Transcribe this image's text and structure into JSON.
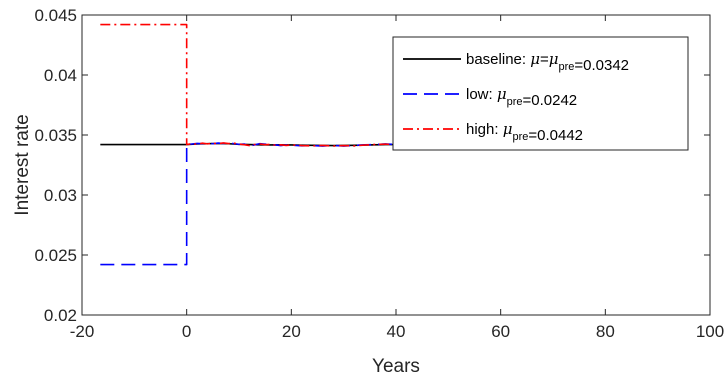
{
  "chart_data": {
    "type": "line",
    "title": "",
    "xlabel": "Years",
    "ylabel": "Interest rate",
    "xlim": [
      -20,
      100
    ],
    "ylim": [
      0.02,
      0.045
    ],
    "xticks": [
      -20,
      0,
      20,
      40,
      60,
      80,
      100
    ],
    "yticks": [
      0.02,
      0.025,
      0.03,
      0.035,
      0.04,
      0.045
    ],
    "ytick_labels": [
      "0.02",
      "0.025",
      "0.03",
      "0.035",
      "0.04",
      "0.045"
    ],
    "grid": false,
    "legend_position": "top-right",
    "series": [
      {
        "name": "baseline",
        "legend_parts": [
          "baseline: ",
          "μ",
          "=",
          "μ",
          "pre",
          "=0.0342"
        ],
        "color": "#000000",
        "style": "solid",
        "x": [
          -16.5,
          0,
          2,
          4,
          6,
          8,
          10,
          12,
          14,
          16,
          18,
          20,
          22,
          24,
          26,
          28,
          30,
          32,
          34,
          36,
          38,
          40,
          42,
          44,
          46,
          48,
          50,
          52,
          54,
          56
        ],
        "y": [
          0.0342,
          0.0342,
          0.03425,
          0.03428,
          0.0343,
          0.03427,
          0.03422,
          0.0342,
          0.03418,
          0.03417,
          0.03418,
          0.03417,
          0.03415,
          0.03414,
          0.03413,
          0.03412,
          0.03413,
          0.03414,
          0.03416,
          0.03418,
          0.0342,
          0.0342,
          0.0342,
          0.0342,
          0.0342,
          0.0342,
          0.0342,
          0.0342,
          0.0342,
          0.0342
        ]
      },
      {
        "name": "low",
        "legend_parts": [
          "low: ",
          "μ",
          "pre",
          "=0.0242"
        ],
        "color": "#0000ff",
        "style": "dashed",
        "x": [
          -16.5,
          0,
          0,
          1,
          2,
          3,
          4,
          5,
          6,
          7,
          8,
          9,
          10,
          11,
          12,
          13,
          14,
          15,
          16,
          17,
          18,
          19,
          20,
          22,
          24,
          26,
          28,
          30,
          32,
          34,
          36,
          38,
          40
        ],
        "y": [
          0.0242,
          0.0242,
          0.0342,
          0.03425,
          0.0343,
          0.03428,
          0.03432,
          0.03427,
          0.03433,
          0.0343,
          0.03435,
          0.03428,
          0.03422,
          0.03425,
          0.03408,
          0.03418,
          0.03428,
          0.03424,
          0.0342,
          0.03417,
          0.03412,
          0.03418,
          0.03415,
          0.0341,
          0.03412,
          0.03408,
          0.03414,
          0.03408,
          0.03412,
          0.03418,
          0.0342,
          0.03426,
          0.0342
        ]
      },
      {
        "name": "high",
        "legend_parts": [
          "high: ",
          "μ",
          "pre",
          "=0.0442"
        ],
        "color": "#ff0000",
        "style": "dashdot",
        "x": [
          -16.5,
          0,
          0,
          1,
          2,
          3,
          4,
          5,
          6,
          7,
          8,
          9,
          10,
          11,
          12,
          13,
          14,
          15,
          16,
          17,
          18,
          19,
          20,
          22,
          24,
          26,
          28,
          30,
          32,
          34,
          36,
          38,
          40
        ],
        "y": [
          0.0442,
          0.0442,
          0.0342,
          0.03428,
          0.03423,
          0.03432,
          0.03426,
          0.03431,
          0.03427,
          0.03434,
          0.03429,
          0.03432,
          0.03424,
          0.03419,
          0.03412,
          0.03421,
          0.03425,
          0.03419,
          0.03422,
          0.03415,
          0.03418,
          0.03413,
          0.03417,
          0.03412,
          0.03409,
          0.03413,
          0.03408,
          0.03412,
          0.03409,
          0.03416,
          0.03421,
          0.03424,
          0.03418
        ]
      }
    ]
  }
}
